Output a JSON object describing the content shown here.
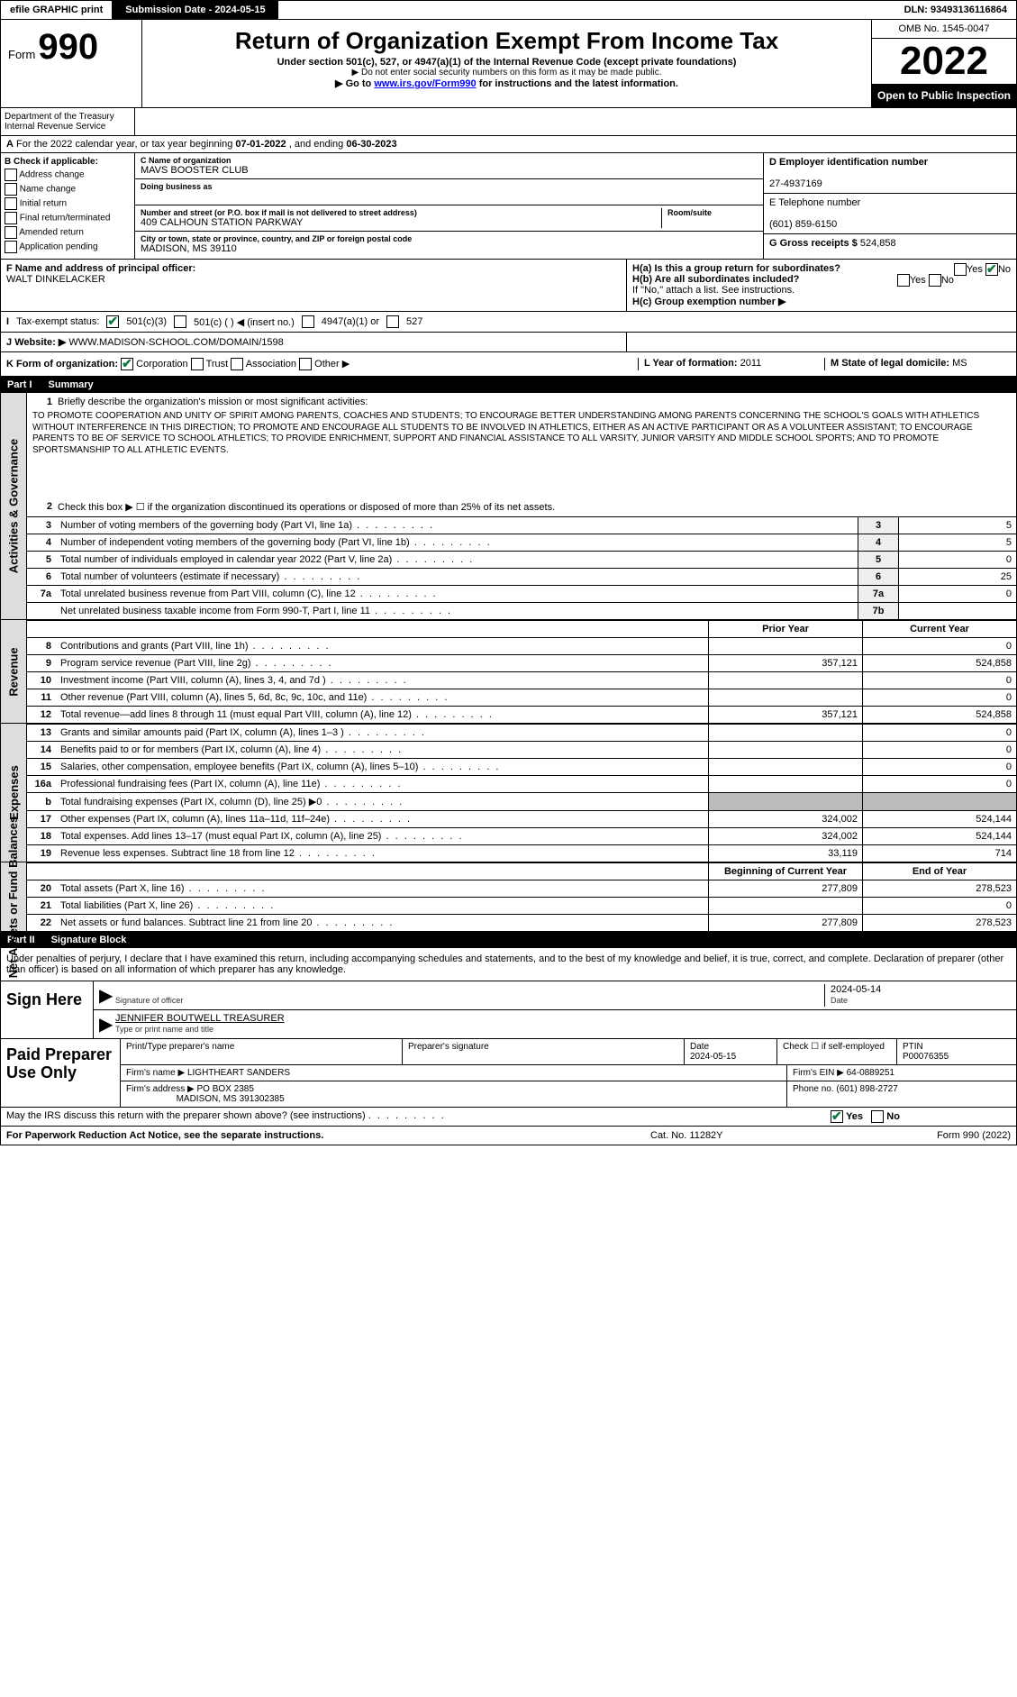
{
  "topbar": {
    "efile": "efile GRAPHIC print",
    "submission": "Submission Date - 2024-05-15",
    "dln": "DLN: 93493136116864"
  },
  "header": {
    "form_prefix": "Form",
    "form_no": "990",
    "title": "Return of Organization Exempt From Income Tax",
    "sub1": "Under section 501(c), 527, or 4947(a)(1) of the Internal Revenue Code (except private foundations)",
    "sub2": "▶ Do not enter social security numbers on this form as it may be made public.",
    "sub3": "▶ Go to ",
    "sub3_link": "www.irs.gov/Form990",
    "sub3b": " for instructions and the latest information.",
    "omb": "OMB No. 1545-0047",
    "year": "2022",
    "open": "Open to Public Inspection",
    "dept": "Department of the Treasury",
    "irs": "Internal Revenue Service"
  },
  "lineA": {
    "t": "For the 2022 calendar year, or tax year beginning ",
    "beg": "07-01-2022",
    "mid": " , and ending ",
    "end": "06-30-2023"
  },
  "colB": {
    "hdr": "B Check if applicable:",
    "items": [
      "Address change",
      "Name change",
      "Initial return",
      "Final return/terminated",
      "Amended return",
      "Application pending"
    ]
  },
  "org": {
    "c_lbl": "C Name of organization",
    "name": "MAVS BOOSTER CLUB",
    "dba_lbl": "Doing business as",
    "dba": "",
    "addr_lbl": "Number and street (or P.O. box if mail is not delivered to street address)",
    "addr": "409 CALHOUN STATION PARKWAY",
    "room_lbl": "Room/suite",
    "city_lbl": "City or town, state or province, country, and ZIP or foreign postal code",
    "city": "MADISON, MS  39110"
  },
  "right": {
    "d_lbl": "D Employer identification number",
    "ein": "27-4937169",
    "e_lbl": "E Telephone number",
    "phone": "(601) 859-6150",
    "g_lbl": "G Gross receipts $",
    "g": "524,858"
  },
  "f": {
    "lbl": "F  Name and address of principal officer:",
    "name": "WALT DINKELACKER"
  },
  "h": {
    "a": "H(a)  Is this a group return for subordinates?",
    "yes": "Yes",
    "no": "No",
    "b": "H(b)  Are all subordinates included?",
    "b2": "If \"No,\" attach a list. See instructions.",
    "c": "H(c)  Group exemption number ▶"
  },
  "i": {
    "lbl": "Tax-exempt status:",
    "o1": "501(c)(3)",
    "o2": "501(c) (   ) ◀ (insert no.)",
    "o3": "4947(a)(1) or",
    "o4": "527"
  },
  "j": {
    "lbl": "Website: ▶",
    "val": "WWW.MADISON-SCHOOL.COM/DOMAIN/1598"
  },
  "k": {
    "lbl": "K Form of organization:",
    "c": "Corporation",
    "t": "Trust",
    "a": "Association",
    "o": "Other ▶"
  },
  "l": {
    "lbl": "L Year of formation:",
    "val": "2011"
  },
  "m": {
    "lbl": "M State of legal domicile:",
    "val": "MS"
  },
  "part1": {
    "p": "Part I",
    "t": "Summary"
  },
  "q1": {
    "n": "1",
    "t": "Briefly describe the organization's mission or most significant activities:",
    "mission": "TO PROMOTE COOPERATION AND UNITY OF SPIRIT AMONG PARENTS, COACHES AND STUDENTS; TO ENCOURAGE BETTER UNDERSTANDING AMONG PARENTS CONCERNING THE SCHOOL'S GOALS WITH ATHLETICS WITHOUT INTERFERENCE IN THIS DIRECTION; TO PROMOTE AND ENCOURAGE ALL STUDENTS TO BE INVOLVED IN ATHLETICS, EITHER AS AN ACTIVE PARTICIPANT OR AS A VOLUNTEER ASSISTANT; TO ENCOURAGE PARENTS TO BE OF SERVICE TO SCHOOL ATHLETICS; TO PROVIDE ENRICHMENT, SUPPORT AND FINANCIAL ASSISTANCE TO ALL VARSITY, JUNIOR VARSITY AND MIDDLE SCHOOL SPORTS; AND TO PROMOTE SPORTSMANSHIP TO ALL ATHLETIC EVENTS."
  },
  "q2": {
    "n": "2",
    "t": "Check this box ▶ ☐ if the organization discontinued its operations or disposed of more than 25% of its net assets."
  },
  "rows_gov": [
    {
      "n": "3",
      "t": "Number of voting members of the governing body (Part VI, line 1a)",
      "box": "3",
      "v": "5"
    },
    {
      "n": "4",
      "t": "Number of independent voting members of the governing body (Part VI, line 1b)",
      "box": "4",
      "v": "5"
    },
    {
      "n": "5",
      "t": "Total number of individuals employed in calendar year 2022 (Part V, line 2a)",
      "box": "5",
      "v": "0"
    },
    {
      "n": "6",
      "t": "Total number of volunteers (estimate if necessary)",
      "box": "6",
      "v": "25"
    },
    {
      "n": "7a",
      "t": "Total unrelated business revenue from Part VIII, column (C), line 12",
      "box": "7a",
      "v": "0"
    },
    {
      "n": "",
      "t": "Net unrelated business taxable income from Form 990-T, Part I, line 11",
      "box": "7b",
      "v": ""
    }
  ],
  "hdr_py": "Prior Year",
  "hdr_cy": "Current Year",
  "rows_rev": [
    {
      "n": "8",
      "t": "Contributions and grants (Part VIII, line 1h)",
      "p": "",
      "c": "0"
    },
    {
      "n": "9",
      "t": "Program service revenue (Part VIII, line 2g)",
      "p": "357,121",
      "c": "524,858"
    },
    {
      "n": "10",
      "t": "Investment income (Part VIII, column (A), lines 3, 4, and 7d )",
      "p": "",
      "c": "0"
    },
    {
      "n": "11",
      "t": "Other revenue (Part VIII, column (A), lines 5, 6d, 8c, 9c, 10c, and 11e)",
      "p": "",
      "c": "0"
    },
    {
      "n": "12",
      "t": "Total revenue—add lines 8 through 11 (must equal Part VIII, column (A), line 12)",
      "p": "357,121",
      "c": "524,858"
    }
  ],
  "rows_exp": [
    {
      "n": "13",
      "t": "Grants and similar amounts paid (Part IX, column (A), lines 1–3 )",
      "p": "",
      "c": "0"
    },
    {
      "n": "14",
      "t": "Benefits paid to or for members (Part IX, column (A), line 4)",
      "p": "",
      "c": "0"
    },
    {
      "n": "15",
      "t": "Salaries, other compensation, employee benefits (Part IX, column (A), lines 5–10)",
      "p": "",
      "c": "0"
    },
    {
      "n": "16a",
      "t": "Professional fundraising fees (Part IX, column (A), line 11e)",
      "p": "",
      "c": "0"
    },
    {
      "n": "b",
      "t": "Total fundraising expenses (Part IX, column (D), line 25) ▶0",
      "p": "",
      "c": "",
      "shade": true
    },
    {
      "n": "17",
      "t": "Other expenses (Part IX, column (A), lines 11a–11d, 11f–24e)",
      "p": "324,002",
      "c": "524,144"
    },
    {
      "n": "18",
      "t": "Total expenses. Add lines 13–17 (must equal Part IX, column (A), line 25)",
      "p": "324,002",
      "c": "524,144"
    },
    {
      "n": "19",
      "t": "Revenue less expenses. Subtract line 18 from line 12",
      "p": "33,119",
      "c": "714"
    }
  ],
  "hdr_boy": "Beginning of Current Year",
  "hdr_eoy": "End of Year",
  "rows_net": [
    {
      "n": "20",
      "t": "Total assets (Part X, line 16)",
      "p": "277,809",
      "c": "278,523"
    },
    {
      "n": "21",
      "t": "Total liabilities (Part X, line 26)",
      "p": "",
      "c": "0"
    },
    {
      "n": "22",
      "t": "Net assets or fund balances. Subtract line 21 from line 20",
      "p": "277,809",
      "c": "278,523"
    }
  ],
  "side": {
    "gov": "Activities & Governance",
    "rev": "Revenue",
    "exp": "Expenses",
    "net": "Net Assets or Fund Balances"
  },
  "part2": {
    "p": "Part II",
    "t": "Signature Block"
  },
  "sig": {
    "decl": "Under penalties of perjury, I declare that I have examined this return, including accompanying schedules and statements, and to the best of my knowledge and belief, it is true, correct, and complete. Declaration of preparer (other than officer) is based on all information of which preparer has any knowledge.",
    "here": "Sign Here",
    "sig_lbl": "Signature of officer",
    "date_lbl": "Date",
    "date": "2024-05-14",
    "name": "JENNIFER BOUTWELL TREASURER",
    "name_lbl": "Type or print name and title"
  },
  "prep": {
    "hdr": "Paid Preparer Use Only",
    "p1": "Print/Type preparer's name",
    "p2": "Preparer's signature",
    "p3": "Date",
    "p3v": "2024-05-15",
    "p4": "Check ☐ if self-employed",
    "p5": "PTIN",
    "p5v": "P00076355",
    "firm_lbl": "Firm's name   ▶",
    "firm": "LIGHTHEART SANDERS",
    "ein_lbl": "Firm's EIN ▶",
    "ein": "64-0889251",
    "addr_lbl": "Firm's address ▶",
    "addr1": "PO BOX 2385",
    "addr2": "MADISON, MS  391302385",
    "phone_lbl": "Phone no.",
    "phone": "(601) 898-2727"
  },
  "irs_q": {
    "t": "May the IRS discuss this return with the preparer shown above? (see instructions)",
    "y": "Yes",
    "n": "No"
  },
  "footer": {
    "l": "For Paperwork Reduction Act Notice, see the separate instructions.",
    "m": "Cat. No. 11282Y",
    "r": "Form 990 (2022)"
  },
  "colors": {
    "link": "#0000ff",
    "check": "#0a7a3a",
    "shade": "#bbbbbb",
    "box_bg": "#eeeeee",
    "side_bg": "#dddddd"
  }
}
